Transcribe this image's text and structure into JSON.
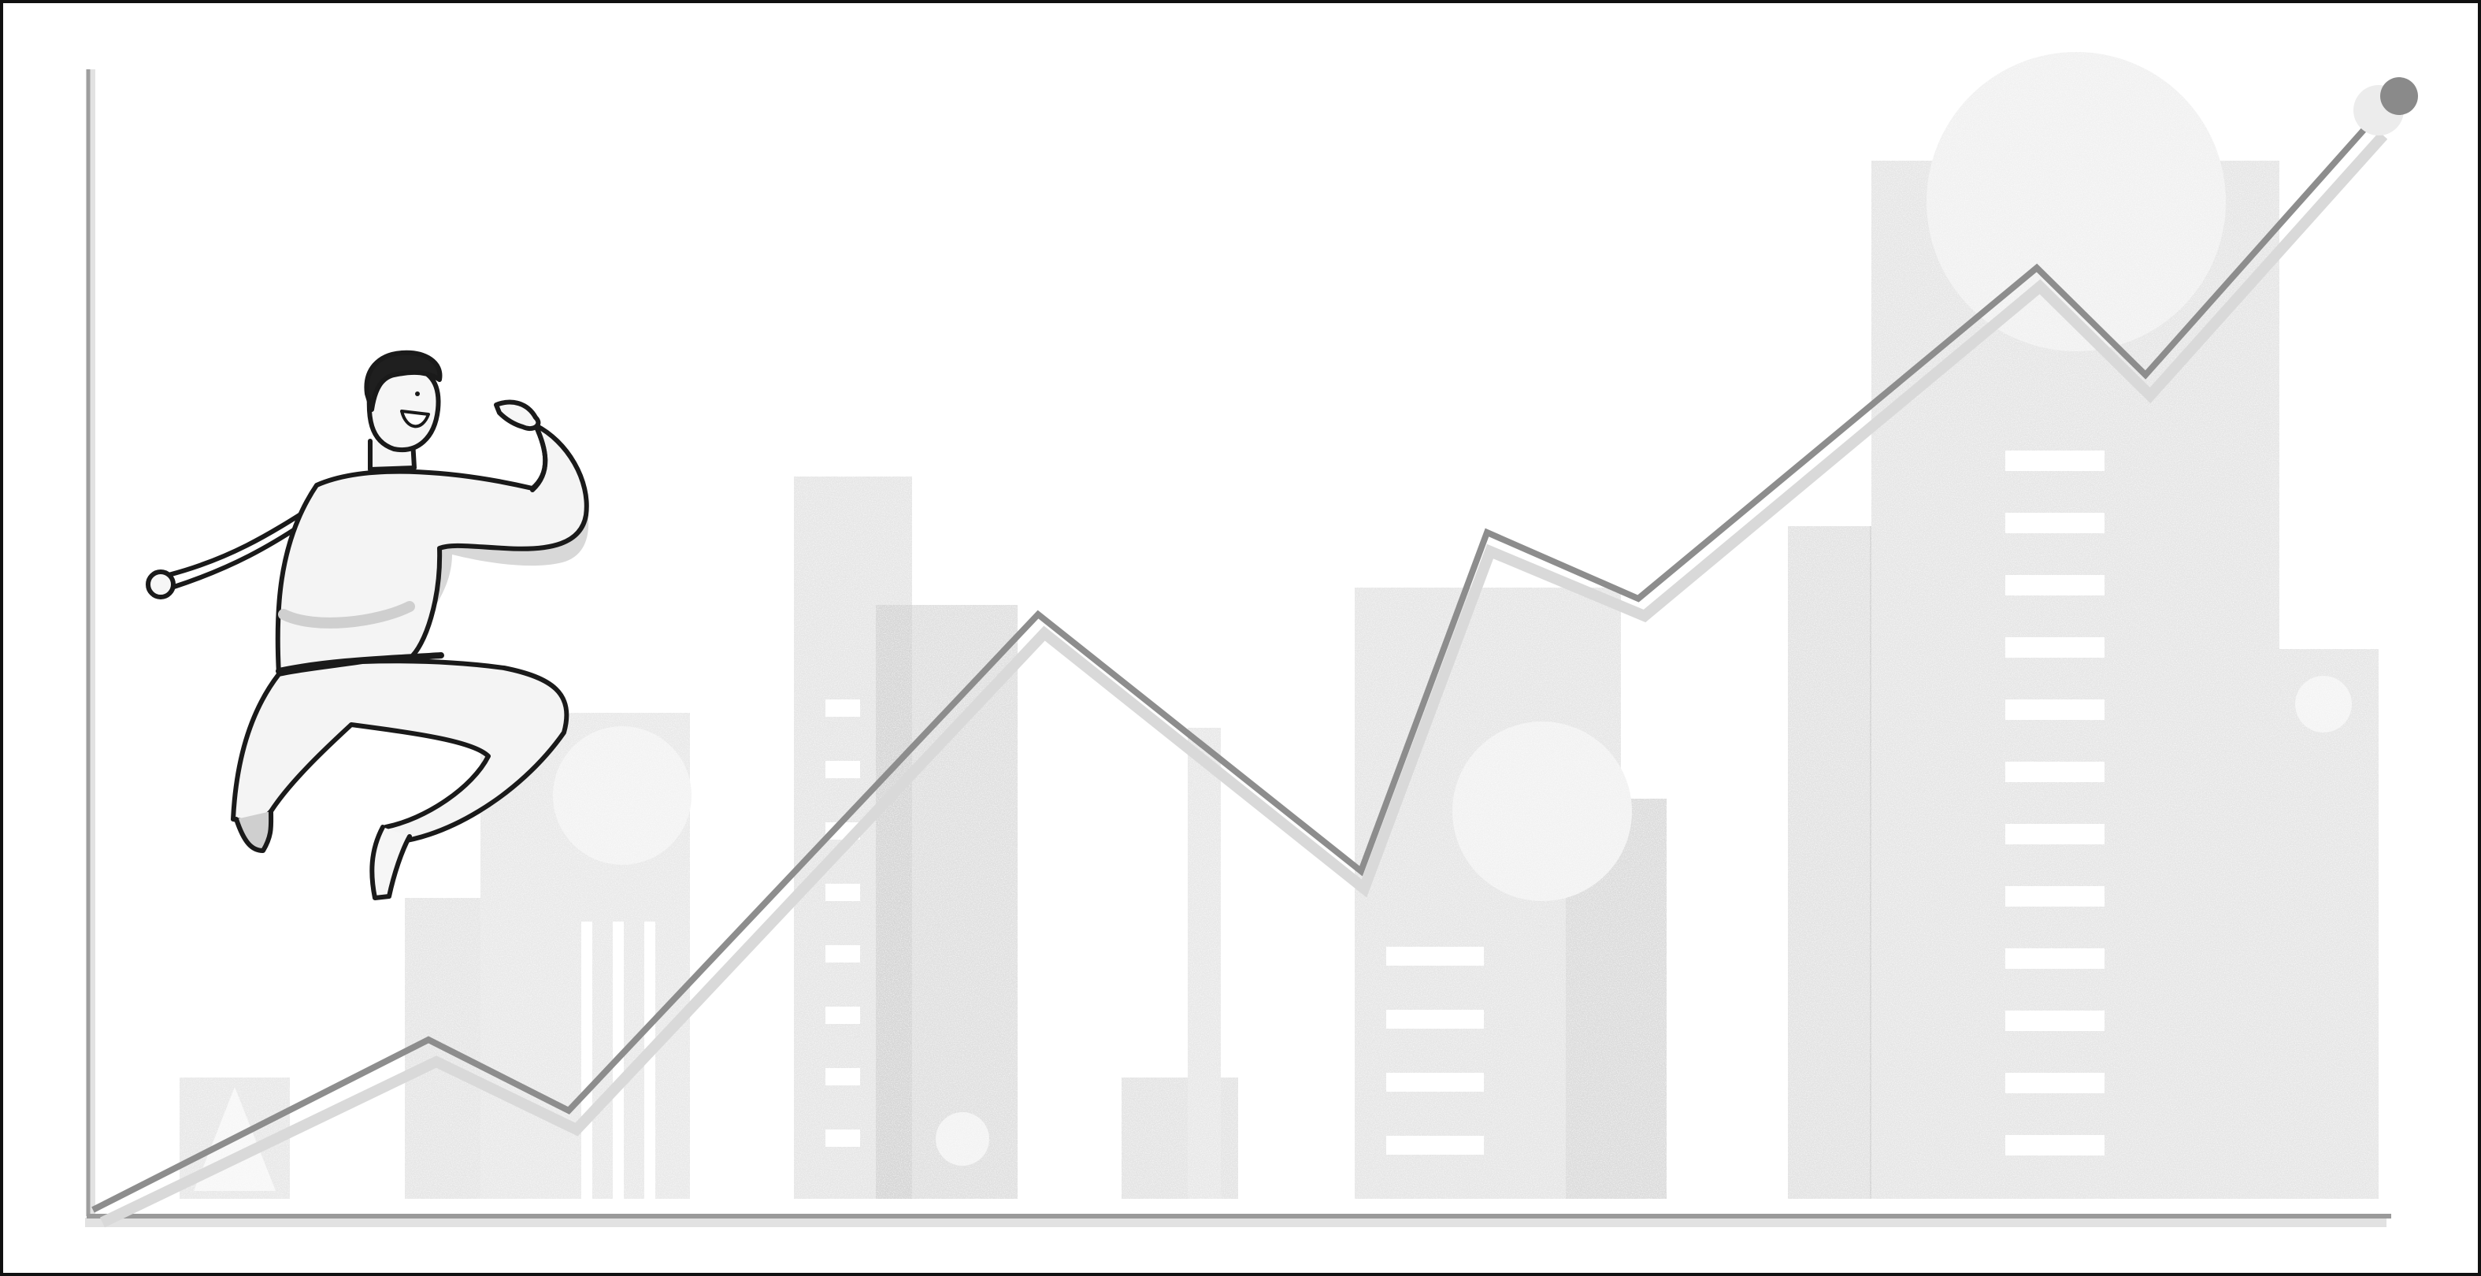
{
  "illustration": {
    "subject": "growth-chart-with-jumping-person",
    "palette": {
      "background": "#ffffff",
      "frame": "#111111",
      "axis": "#9a9a9a",
      "building_light": "#e9e9e9",
      "building_mid": "#dedede",
      "building_dark": "#d2d2d2",
      "window": "#ffffff",
      "trend_line": "#8c8c8c",
      "trend_shadow": "#d6d6d6",
      "endpoint": "#8a8a8a",
      "person_fill": "#f4f4f4",
      "person_shade": "#d9d9d9",
      "person_outline": "#1a1a1a",
      "hair": "#1f1f1f"
    },
    "icons": [
      "trend-line-icon",
      "endpoint-dot-icon",
      "person-icon"
    ]
  }
}
